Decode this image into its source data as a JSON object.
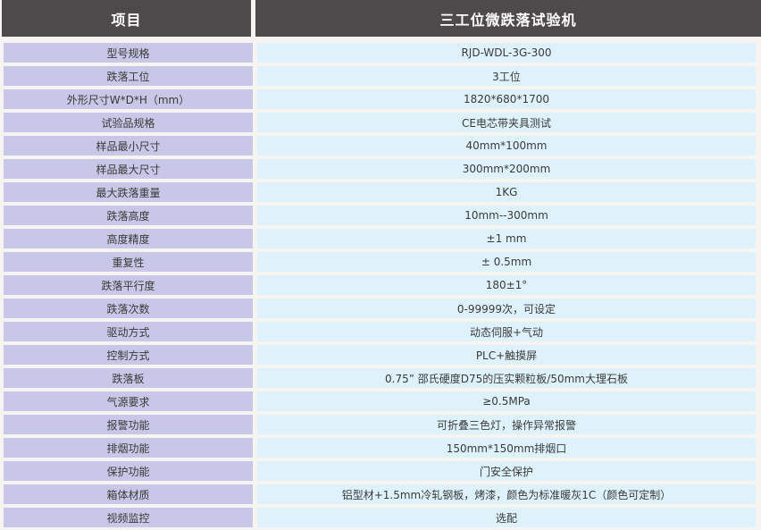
{
  "table": {
    "header": {
      "item_label": "项目",
      "product_title": "三工位微跌落试验机"
    },
    "rows": [
      {
        "item": "型号规格",
        "value": "RJD-WDL-3G-300"
      },
      {
        "item": "跌落工位",
        "value": "3工位"
      },
      {
        "item": "外形尺寸W*D*H（mm）",
        "value": "1820*680*1700"
      },
      {
        "item": "试验品规格",
        "value": "CE电芯带夹具测试"
      },
      {
        "item": "样品最小尺寸",
        "value": "40mm*100mm"
      },
      {
        "item": "样品最大尺寸",
        "value": "300mm*200mm"
      },
      {
        "item": "最大跌落重量",
        "value": "1KG"
      },
      {
        "item": "跌落高度",
        "value": "10mm--300mm"
      },
      {
        "item": "高度精度",
        "value": "±1 mm"
      },
      {
        "item": "重复性",
        "value": "± 0.5mm"
      },
      {
        "item": "跌落平行度",
        "value": "180±1°"
      },
      {
        "item": "跌落次数",
        "value": "0-99999次，可设定"
      },
      {
        "item": "驱动方式",
        "value": "动态伺服+气动"
      },
      {
        "item": "控制方式",
        "value": "PLC+触摸屏"
      },
      {
        "item": "跌落板",
        "value": "0.75” 邵氏硬度D75的压实颗粒板/50mm大理石板"
      },
      {
        "item": "气源要求",
        "value": "≥0.5MPa"
      },
      {
        "item": "报警功能",
        "value": "可折叠三色灯，操作异常报警"
      },
      {
        "item": "排烟功能",
        "value": "150mm*150mm排烟口"
      },
      {
        "item": "保护功能",
        "value": "门安全保护"
      },
      {
        "item": "箱体材质",
        "value": "铝型材+1.5mm冷轧钢板，烤漆，颜色为标准暖灰1C（颜色可定制）"
      },
      {
        "item": "视频监控",
        "value": "选配"
      }
    ]
  },
  "colors": {
    "header_bg": "#4e4a4b",
    "header_text": "#ffffff",
    "label_bg": "#c9c7e7",
    "value_bg": "#def2fb",
    "gap_bg": "#f6f4f1",
    "body_text": "#3a3a3a"
  }
}
